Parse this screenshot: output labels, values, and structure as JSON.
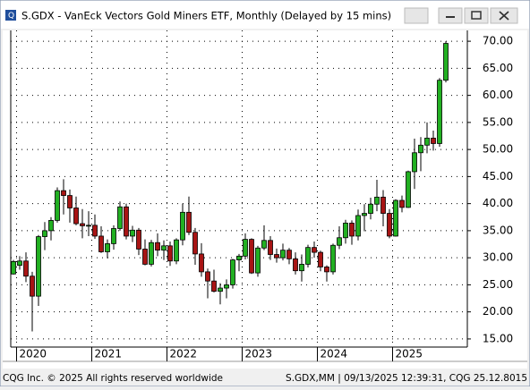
{
  "window_title": "S.GDX - VanEck Vectors Gold Miners ETF, Monthly (Delayed by 15 mins)",
  "footer": {
    "left": "CQG Inc. © 2025 All rights reserved worldwide",
    "right": "S.GDX,MM | 09/13/2025 12:39:31, CQG 25.12.8015"
  },
  "chart_data": {
    "type": "candlestick",
    "categories": [
      null,
      "2020",
      null,
      null,
      null,
      null,
      null,
      null,
      null,
      null,
      null,
      null,
      null,
      "2021",
      null,
      null,
      null,
      null,
      null,
      null,
      null,
      null,
      null,
      null,
      null,
      "2022",
      null,
      null,
      null,
      null,
      null,
      null,
      null,
      null,
      null,
      null,
      null,
      "2023",
      null,
      null,
      null,
      null,
      null,
      null,
      null,
      null,
      null,
      null,
      null,
      "2024",
      null,
      null,
      null,
      null,
      null,
      null,
      null,
      null,
      null,
      null,
      null,
      "2025",
      null,
      null,
      null,
      null,
      null,
      null,
      null,
      null
    ],
    "open": [
      27.0,
      28.6,
      29.4,
      26.6,
      22.9,
      33.9,
      35.0,
      36.9,
      42.4,
      41.5,
      39.2,
      36.3,
      35.9,
      36.0,
      34.0,
      31.1,
      32.6,
      35.4,
      39.4,
      34.0,
      35.1,
      31.6,
      28.8,
      32.8,
      31.4,
      32.2,
      29.4,
      33.3,
      38.4,
      34.7,
      30.7,
      27.4,
      25.7,
      23.8,
      24.4,
      25.0,
      29.6,
      30.3,
      33.4,
      27.2,
      31.8,
      33.2,
      30.6,
      30.0,
      31.4,
      29.8,
      27.6,
      28.8,
      31.9,
      31.0,
      28.3,
      27.4,
      32.3,
      33.7,
      36.4,
      34.0,
      37.8,
      38.2,
      39.9,
      41.2,
      38.2,
      34.0,
      40.6,
      39.3,
      45.9,
      49.4,
      50.8,
      52.1,
      51.1,
      62.8
    ],
    "high": [
      29.6,
      30.3,
      31.0,
      27.4,
      34.2,
      36.6,
      37.5,
      43.0,
      44.5,
      42.6,
      41.3,
      39.0,
      38.6,
      38.0,
      35.8,
      33.4,
      36.0,
      40.4,
      40.0,
      35.9,
      35.5,
      33.4,
      33.3,
      34.5,
      33.2,
      33.0,
      33.6,
      40.0,
      41.3,
      35.5,
      32.7,
      28.0,
      27.8,
      25.3,
      26.0,
      29.8,
      30.7,
      34.5,
      33.6,
      32.2,
      36.0,
      34.0,
      31.7,
      32.6,
      31.8,
      31.0,
      30.6,
      32.4,
      33.0,
      31.3,
      28.6,
      32.6,
      35.8,
      37.0,
      36.9,
      38.9,
      39.9,
      41.1,
      44.4,
      42.5,
      39.0,
      40.8,
      41.5,
      46.1,
      52.0,
      52.3,
      55.0,
      53.5,
      63.2,
      70.0
    ],
    "low": [
      26.9,
      27.8,
      25.5,
      16.4,
      21.1,
      31.4,
      33.2,
      36.5,
      38.0,
      36.5,
      36.0,
      33.6,
      34.0,
      33.5,
      30.9,
      29.9,
      31.5,
      35.0,
      33.4,
      32.9,
      30.5,
      28.6,
      28.4,
      30.3,
      29.6,
      28.5,
      28.8,
      32.3,
      34.2,
      28.7,
      26.5,
      22.5,
      23.6,
      21.4,
      22.5,
      24.3,
      27.5,
      29.7,
      27.0,
      26.5,
      31.4,
      29.6,
      29.1,
      29.5,
      28.8,
      26.9,
      25.6,
      28.2,
      30.0,
      27.5,
      25.6,
      26.9,
      31.6,
      32.6,
      32.4,
      33.2,
      34.9,
      37.1,
      38.6,
      35.8,
      33.6,
      33.9,
      38.4,
      39.2,
      42.7,
      46.0,
      49.3,
      49.8,
      50.5,
      62.4
    ],
    "close": [
      29.3,
      29.4,
      26.6,
      22.9,
      33.9,
      35.0,
      36.9,
      42.4,
      41.5,
      39.2,
      36.3,
      35.9,
      36.0,
      34.0,
      31.1,
      32.6,
      35.4,
      39.4,
      34.0,
      35.1,
      31.6,
      28.8,
      32.8,
      31.4,
      32.2,
      29.4,
      33.3,
      38.4,
      34.7,
      30.7,
      27.4,
      25.7,
      23.8,
      24.4,
      25.0,
      29.6,
      30.3,
      33.4,
      27.2,
      31.8,
      33.2,
      30.6,
      30.0,
      31.4,
      29.8,
      27.6,
      28.8,
      31.9,
      31.0,
      28.3,
      27.4,
      32.3,
      33.7,
      36.4,
      34.0,
      37.8,
      38.2,
      39.9,
      41.2,
      38.2,
      34.0,
      40.6,
      39.3,
      45.9,
      49.4,
      50.8,
      52.1,
      51.1,
      62.8,
      69.6
    ],
    "up_color": "#22b022",
    "down_color": "#a81414",
    "ylim": [
      13.5,
      72
    ],
    "yticks": [
      {
        "value": 15,
        "label": "15.00"
      },
      {
        "value": 20,
        "label": "20.00"
      },
      {
        "value": 25,
        "label": "25.00"
      },
      {
        "value": 30,
        "label": "30.00"
      },
      {
        "value": 35,
        "label": "35.00"
      },
      {
        "value": 40,
        "label": "40.00"
      },
      {
        "value": 45,
        "label": "45.00"
      },
      {
        "value": 50,
        "label": "50.00"
      },
      {
        "value": 55,
        "label": "55.00"
      },
      {
        "value": 60,
        "label": "60.00"
      },
      {
        "value": 65,
        "label": "65.00"
      },
      {
        "value": 70,
        "label": "70.00"
      }
    ],
    "grid": true
  }
}
